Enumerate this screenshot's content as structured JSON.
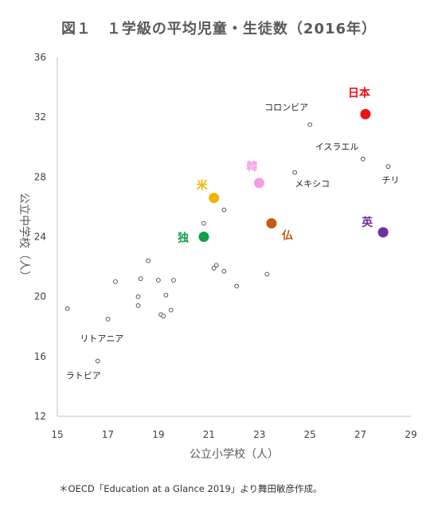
{
  "title": "図１　１学級の平均児童・生徒数（2016年）",
  "footnote": "＊OECD「Education at a Glance 2019」より舞田敏彦作成。",
  "chart_data": {
    "type": "scatter",
    "xlabel": "公立小学校（人）",
    "ylabel": "公立中学校（人）",
    "xlim": [
      15,
      29
    ],
    "ylim": [
      12,
      36
    ],
    "xticks": [
      15,
      17,
      19,
      21,
      23,
      25,
      27,
      29
    ],
    "yticks": [
      12,
      16,
      20,
      24,
      28,
      32,
      36
    ],
    "grid": false,
    "points": [
      {
        "x": 15.4,
        "y": 19.2
      },
      {
        "x": 16.6,
        "y": 15.7,
        "label": "ラトビア"
      },
      {
        "x": 17.0,
        "y": 18.5,
        "label": "リトアニア"
      },
      {
        "x": 17.3,
        "y": 21.0
      },
      {
        "x": 18.2,
        "y": 19.4
      },
      {
        "x": 18.2,
        "y": 20.0
      },
      {
        "x": 18.3,
        "y": 21.2
      },
      {
        "x": 18.6,
        "y": 22.4
      },
      {
        "x": 19.1,
        "y": 18.8
      },
      {
        "x": 19.2,
        "y": 18.7
      },
      {
        "x": 19.0,
        "y": 21.1
      },
      {
        "x": 19.3,
        "y": 20.1
      },
      {
        "x": 19.5,
        "y": 19.1
      },
      {
        "x": 19.6,
        "y": 21.1
      },
      {
        "x": 20.8,
        "y": 24.9
      },
      {
        "x": 21.2,
        "y": 21.9
      },
      {
        "x": 21.3,
        "y": 22.1
      },
      {
        "x": 21.6,
        "y": 21.7
      },
      {
        "x": 21.6,
        "y": 25.8
      },
      {
        "x": 22.1,
        "y": 20.7
      },
      {
        "x": 23.3,
        "y": 21.5
      },
      {
        "x": 24.4,
        "y": 28.3,
        "label": "メキシコ"
      },
      {
        "x": 25.0,
        "y": 31.5,
        "label": "コロンビア"
      },
      {
        "x": 27.1,
        "y": 29.2,
        "label": "イスラエル"
      },
      {
        "x": 28.1,
        "y": 28.7,
        "label": "チリ"
      }
    ],
    "highlighted": [
      {
        "x": 27.2,
        "y": 32.2,
        "label": "日本",
        "color": "#ee1111"
      },
      {
        "x": 22.99,
        "y": 27.6,
        "label": "韓",
        "color": "#f59ee6"
      },
      {
        "x": 21.2,
        "y": 26.6,
        "label": "米",
        "color": "#f0b400"
      },
      {
        "x": 23.48,
        "y": 24.9,
        "label": "仏",
        "color": "#c55a11"
      },
      {
        "x": 20.8,
        "y": 24.0,
        "label": "独",
        "color": "#10a04a"
      },
      {
        "x": 27.9,
        "y": 24.3,
        "label": "英",
        "color": "#7030a0"
      }
    ]
  }
}
